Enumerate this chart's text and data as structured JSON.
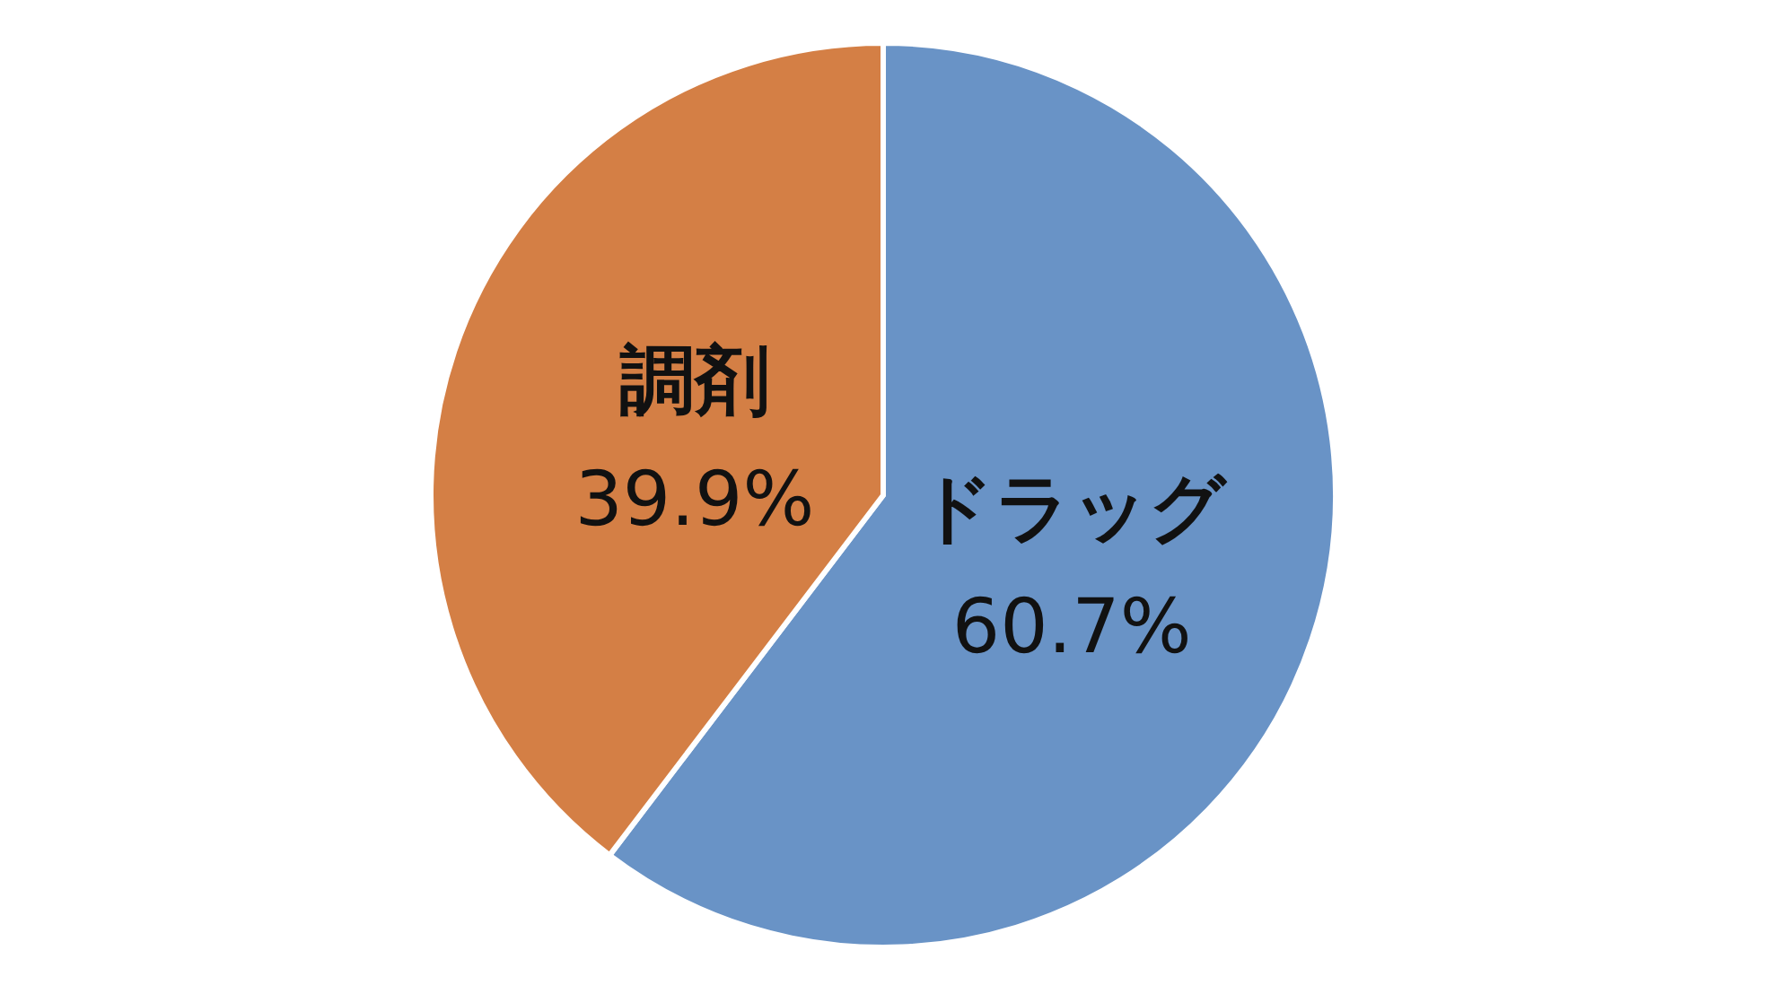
{
  "chart_data": {
    "type": "pie",
    "categories": [
      "ドラッグ",
      "調剤"
    ],
    "values": [
      60.7,
      39.9
    ],
    "colors": [
      "#6993c6",
      "#d47f45"
    ],
    "value_labels": [
      "60.7%",
      "39.9%"
    ]
  }
}
